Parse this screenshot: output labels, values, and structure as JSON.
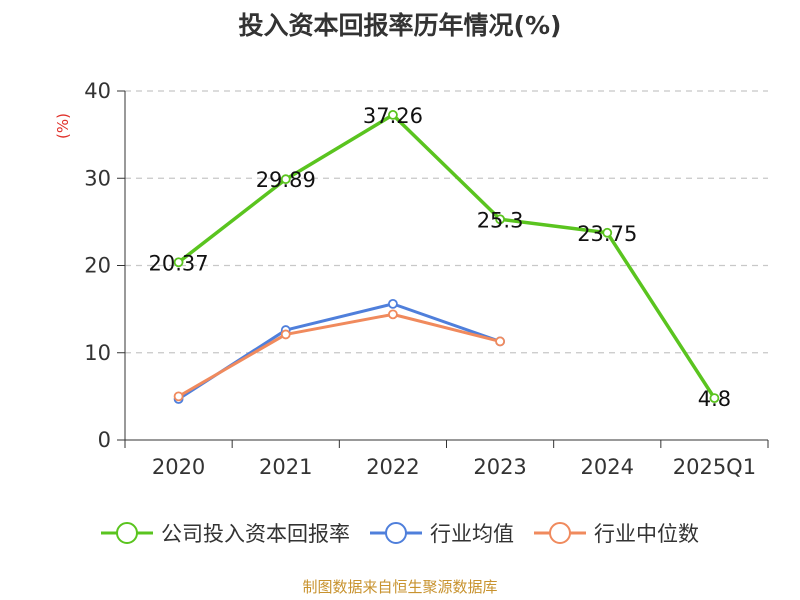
{
  "chart_data": {
    "type": "line",
    "title": "投入资本回报率历年情况(%)",
    "ylabel": "(%)",
    "xlabel": "",
    "categories": [
      "2020",
      "2021",
      "2022",
      "2023",
      "2024",
      "2025Q1"
    ],
    "ylim": [
      0,
      40
    ],
    "yticks": [
      0,
      10,
      20,
      30,
      40
    ],
    "grid": true,
    "legend_position": "bottom",
    "series": [
      {
        "name": "公司投入资本回报率",
        "color": "#5ac41f",
        "values": [
          20.37,
          29.89,
          37.26,
          25.3,
          23.75,
          4.8
        ],
        "labels": [
          "20.37",
          "29.89",
          "37.26",
          "25.3",
          "23.75",
          "4.8"
        ]
      },
      {
        "name": "行业均值",
        "color": "#4f7fdb",
        "values": [
          4.7,
          12.6,
          15.6,
          11.3,
          null,
          null
        ]
      },
      {
        "name": "行业中位数",
        "color": "#f08a5d",
        "values": [
          5.0,
          12.1,
          14.4,
          11.3,
          null,
          null
        ]
      }
    ]
  },
  "source": "制图数据来自恒生聚源数据库"
}
